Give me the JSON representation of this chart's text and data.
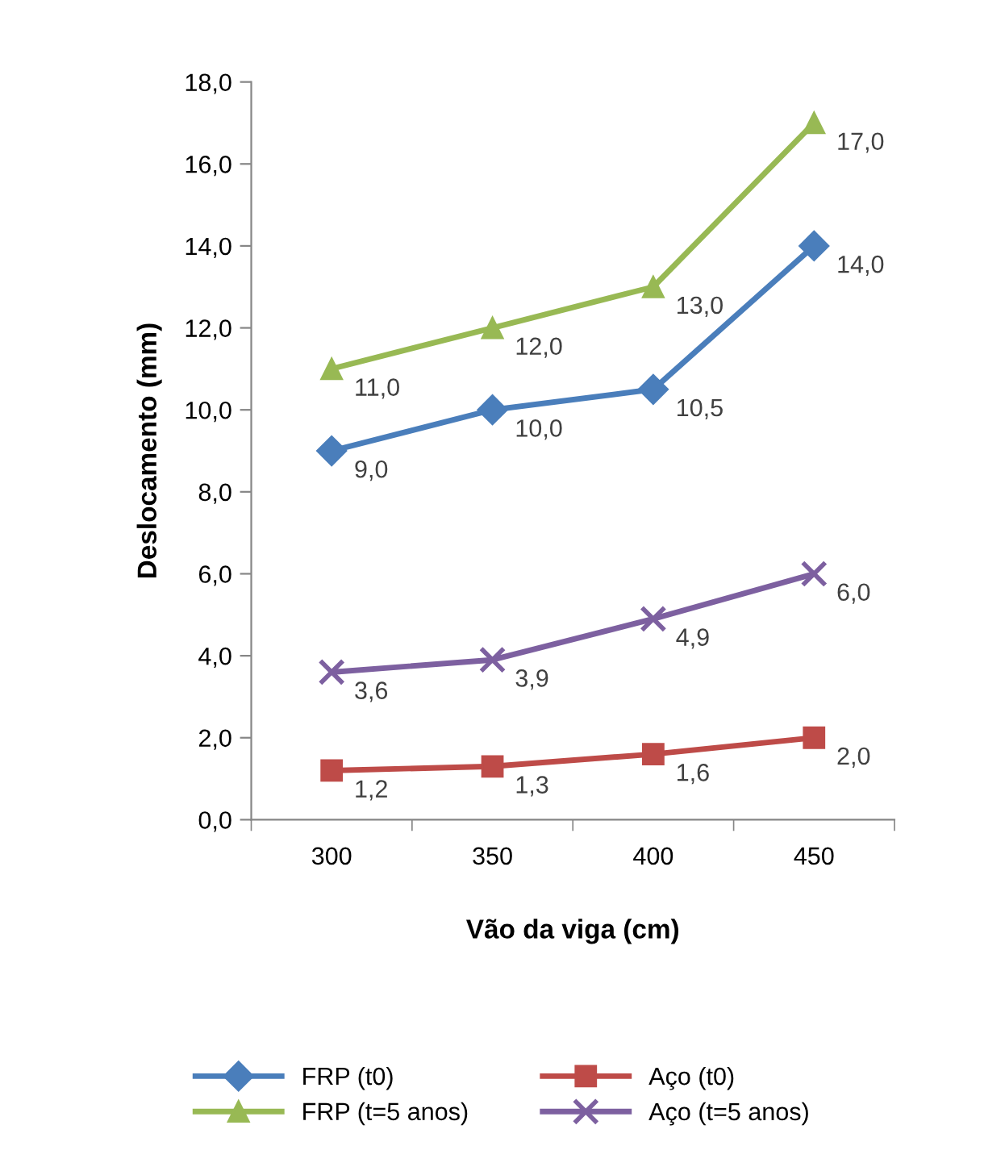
{
  "chart_data": {
    "type": "line",
    "xlabel": "Vão da viga (cm)",
    "ylabel": "Deslocamento (mm)",
    "categories": [
      "300",
      "350",
      "400",
      "450"
    ],
    "ylim": [
      0,
      18
    ],
    "yticks": [
      {
        "value": 0,
        "label": "0,0"
      },
      {
        "value": 2,
        "label": "2,0"
      },
      {
        "value": 4,
        "label": "4,0"
      },
      {
        "value": 6,
        "label": "6,0"
      },
      {
        "value": 8,
        "label": "8,0"
      },
      {
        "value": 10,
        "label": "10,0"
      },
      {
        "value": 12,
        "label": "12,0"
      },
      {
        "value": 14,
        "label": "14,0"
      },
      {
        "value": 16,
        "label": "16,0"
      },
      {
        "value": 18,
        "label": "18,0"
      }
    ],
    "grid": false,
    "legend": "bottom",
    "line_style": "solid",
    "series": [
      {
        "name": "FRP (t0)",
        "color": "#4a7ebb",
        "marker": "diamond",
        "values": [
          9.0,
          10.0,
          10.5,
          14.0
        ],
        "value_labels": [
          "9,0",
          "10,0",
          "10,5",
          "14,0"
        ]
      },
      {
        "name": "Aço (t0)",
        "color": "#be4b48",
        "marker": "square",
        "values": [
          1.2,
          1.3,
          1.6,
          2.0
        ],
        "value_labels": [
          "1,2",
          "1,3",
          "1,6",
          "2,0"
        ]
      },
      {
        "name": "FRP (t=5 anos)",
        "color": "#98b954",
        "marker": "triangle",
        "values": [
          11.0,
          12.0,
          13.0,
          17.0
        ],
        "value_labels": [
          "11,0",
          "12,0",
          "13,0",
          "17,0"
        ]
      },
      {
        "name": "Aço (t=5 anos)",
        "color": "#7d60a0",
        "marker": "cross",
        "values": [
          3.6,
          3.9,
          4.9,
          6.0
        ],
        "value_labels": [
          "3,6",
          "3,9",
          "4,9",
          "6,0"
        ]
      }
    ]
  }
}
